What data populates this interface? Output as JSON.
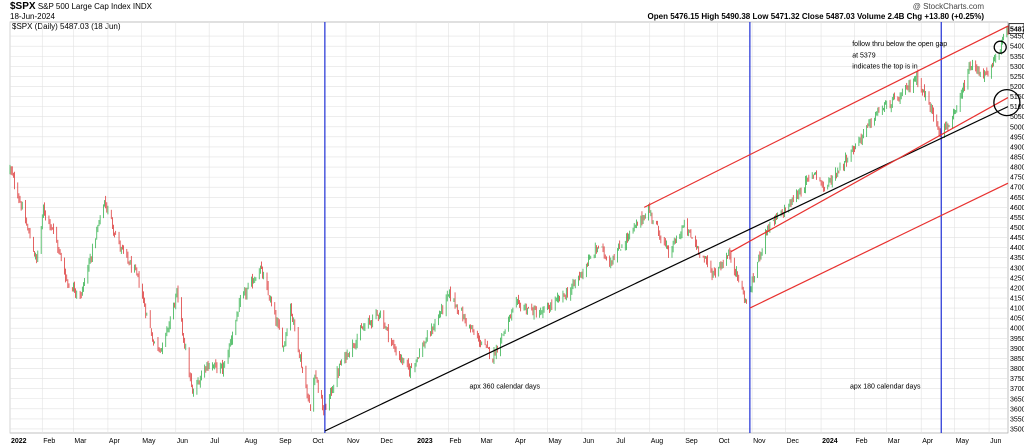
{
  "header": {
    "symbol": "$SPX",
    "name": "S&P 500 Large Cap Index",
    "exchange": "INDX",
    "copyright": "@ StockCharts.com",
    "date": "18-Jun-2024",
    "legend": "$SPX (Daily) 5487.03 (18 Jun)",
    "ohlc": "Open 5476.15  High 5490.38  Low 5471.32  Close 5487.03  Volume 2.4B  Chg +13.80 (+0.25%)"
  },
  "chart_data": {
    "type": "candlestick",
    "y_ticks": [
      3500,
      3550,
      3600,
      3650,
      3700,
      3750,
      3800,
      3850,
      3900,
      3950,
      4000,
      4050,
      4100,
      4150,
      4200,
      4250,
      4300,
      4350,
      4400,
      4450,
      4500,
      4550,
      4600,
      4650,
      4700,
      4750,
      4800,
      4850,
      4900,
      4950,
      5000,
      5050,
      5100,
      5150,
      5200,
      5250,
      5300,
      5350,
      5400,
      5450
    ],
    "ylim": [
      3480,
      5520
    ],
    "x_range": [
      "2022-01-03",
      "2024-06-18"
    ],
    "x_ticks": [
      {
        "label": "2022",
        "date": "2022-01-03",
        "bold": true
      },
      {
        "label": "Feb",
        "date": "2022-02-01"
      },
      {
        "label": "Mar",
        "date": "2022-03-01"
      },
      {
        "label": "Apr",
        "date": "2022-04-01"
      },
      {
        "label": "May",
        "date": "2022-05-01"
      },
      {
        "label": "Jun",
        "date": "2022-06-01"
      },
      {
        "label": "Jul",
        "date": "2022-07-01"
      },
      {
        "label": "Aug",
        "date": "2022-08-01"
      },
      {
        "label": "Sep",
        "date": "2022-09-01"
      },
      {
        "label": "Oct",
        "date": "2022-10-01"
      },
      {
        "label": "Nov",
        "date": "2022-11-01"
      },
      {
        "label": "Dec",
        "date": "2022-12-01"
      },
      {
        "label": "2023",
        "date": "2023-01-03",
        "bold": true
      },
      {
        "label": "Feb",
        "date": "2023-02-01"
      },
      {
        "label": "Mar",
        "date": "2023-03-01"
      },
      {
        "label": "Apr",
        "date": "2023-04-01"
      },
      {
        "label": "May",
        "date": "2023-05-01"
      },
      {
        "label": "Jun",
        "date": "2023-06-01"
      },
      {
        "label": "Jul",
        "date": "2023-07-01"
      },
      {
        "label": "Aug",
        "date": "2023-08-01"
      },
      {
        "label": "Sep",
        "date": "2023-09-01"
      },
      {
        "label": "Oct",
        "date": "2023-10-01"
      },
      {
        "label": "Nov",
        "date": "2023-11-01"
      },
      {
        "label": "Dec",
        "date": "2023-12-01"
      },
      {
        "label": "2024",
        "date": "2024-01-02",
        "bold": true
      },
      {
        "label": "Feb",
        "date": "2024-02-01"
      },
      {
        "label": "Mar",
        "date": "2024-03-01"
      },
      {
        "label": "Apr",
        "date": "2024-04-01"
      },
      {
        "label": "May",
        "date": "2024-05-01"
      },
      {
        "label": "Jun",
        "date": "2024-06-01"
      }
    ],
    "price_path": [
      [
        "2022-01-03",
        4790
      ],
      [
        "2022-01-10",
        4670
      ],
      [
        "2022-01-27",
        4330
      ],
      [
        "2022-02-02",
        4590
      ],
      [
        "2022-02-10",
        4500
      ],
      [
        "2022-02-24",
        4220
      ],
      [
        "2022-03-08",
        4170
      ],
      [
        "2022-03-29",
        4630
      ],
      [
        "2022-04-12",
        4400
      ],
      [
        "2022-04-28",
        4250
      ],
      [
        "2022-05-12",
        3930
      ],
      [
        "2022-05-20",
        3900
      ],
      [
        "2022-06-02",
        4170
      ],
      [
        "2022-06-16",
        3670
      ],
      [
        "2022-06-28",
        3820
      ],
      [
        "2022-07-14",
        3800
      ],
      [
        "2022-07-29",
        4130
      ],
      [
        "2022-08-16",
        4300
      ],
      [
        "2022-09-06",
        3910
      ],
      [
        "2022-09-12",
        4110
      ],
      [
        "2022-09-30",
        3590
      ],
      [
        "2022-10-04",
        3790
      ],
      [
        "2022-10-12",
        3580
      ],
      [
        "2022-10-27",
        3820
      ],
      [
        "2022-11-15",
        3990
      ],
      [
        "2022-12-01",
        4080
      ],
      [
        "2022-12-15",
        3890
      ],
      [
        "2022-12-28",
        3790
      ],
      [
        "2023-01-17",
        3990
      ],
      [
        "2023-02-02",
        4170
      ],
      [
        "2023-02-24",
        3970
      ],
      [
        "2023-03-13",
        3860
      ],
      [
        "2023-04-03",
        4120
      ],
      [
        "2023-04-25",
        4070
      ],
      [
        "2023-05-22",
        4190
      ],
      [
        "2023-06-16",
        4410
      ],
      [
        "2023-06-26",
        4330
      ],
      [
        "2023-07-31",
        4590
      ],
      [
        "2023-08-18",
        4370
      ],
      [
        "2023-09-01",
        4510
      ],
      [
        "2023-09-27",
        4270
      ],
      [
        "2023-10-12",
        4370
      ],
      [
        "2023-10-27",
        4120
      ],
      [
        "2023-11-14",
        4490
      ],
      [
        "2023-12-01",
        4590
      ],
      [
        "2023-12-28",
        4780
      ],
      [
        "2024-01-05",
        4690
      ],
      [
        "2024-02-01",
        4900
      ],
      [
        "2024-02-23",
        5080
      ],
      [
        "2024-03-14",
        5150
      ],
      [
        "2024-03-28",
        5250
      ],
      [
        "2024-04-19",
        4970
      ],
      [
        "2024-05-02",
        5060
      ],
      [
        "2024-05-15",
        5300
      ],
      [
        "2024-05-31",
        5250
      ],
      [
        "2024-06-18",
        5487.03
      ]
    ],
    "lines": [
      {
        "color": "#000000",
        "from": [
          "2022-10-13",
          3490
        ],
        "to": [
          "2024-06-18",
          5100
        ]
      },
      {
        "color": "#e8312f",
        "from": [
          "2023-07-27",
          4600
        ],
        "to": [
          "2024-06-18",
          5500
        ]
      },
      {
        "color": "#e8312f",
        "from": [
          "2023-10-13",
          4380
        ],
        "to": [
          "2024-06-18",
          5145
        ]
      },
      {
        "color": "#e8312f",
        "from": [
          "2023-10-30",
          4100
        ],
        "to": [
          "2024-06-18",
          4720
        ]
      }
    ],
    "verticals": [
      {
        "color": "#1f2fd6",
        "date": "2022-10-13"
      },
      {
        "color": "#1f2fd6",
        "date": "2023-10-30"
      },
      {
        "color": "#1f2fd6",
        "date": "2024-04-19"
      }
    ],
    "annotations": [
      {
        "text": "apx 360 calendar days",
        "date": "2023-02-20",
        "y": 3700,
        "color": "#1f2fd6"
      },
      {
        "text": "apx 180 calendar days",
        "date": "2024-01-28",
        "y": 3700,
        "color": "#1f2fd6"
      },
      {
        "text": "follow thru below the open gap",
        "date": "2024-01-30",
        "y": 5400,
        "color": "#000000"
      },
      {
        "text": "at 5379",
        "date": "2024-01-30",
        "y": 5345,
        "color": "#000000"
      },
      {
        "text": "indicates the top is in",
        "date": "2024-01-30",
        "y": 5290,
        "color": "#000000"
      }
    ],
    "circles": [
      {
        "date": "2024-06-11",
        "y": 5395,
        "r": 6
      },
      {
        "date": "2024-06-17",
        "y": 5120,
        "r": 13
      }
    ],
    "last_price_label": "5487.03",
    "colors": {
      "up": "#1aa838",
      "down": "#d92020",
      "grid": "#e2e2e2"
    }
  }
}
